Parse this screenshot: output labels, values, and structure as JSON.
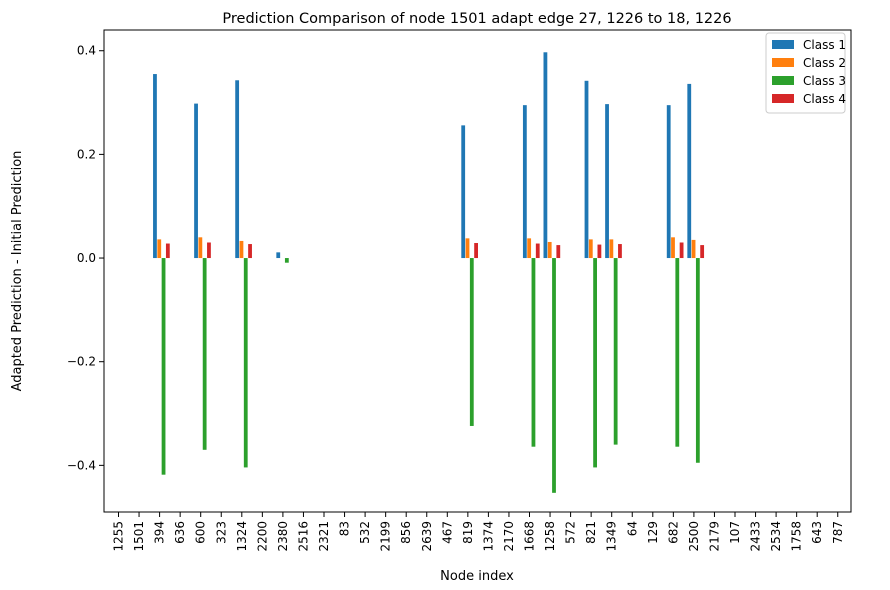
{
  "chart_data": {
    "type": "bar",
    "title": "Prediction Comparison of node 1501 adapt edge   27, 1226 to 18,  1226",
    "xlabel": "Node index",
    "ylabel": "Adapted Prediction - Initial Prediction",
    "ylim": [
      -0.49,
      0.44
    ],
    "yticks": [
      0.4,
      0.2,
      0.0,
      -0.2,
      -0.4
    ],
    "ytick_labels": [
      "0.4",
      "0.2",
      "0.0",
      "−0.2",
      "−0.4"
    ],
    "legend_position": "top-right",
    "categories": [
      "1255",
      "1501",
      "394",
      "636",
      "600",
      "323",
      "1324",
      "2200",
      "2380",
      "2516",
      "2321",
      "83",
      "532",
      "2199",
      "856",
      "2639",
      "467",
      "819",
      "1374",
      "2170",
      "1668",
      "1258",
      "572",
      "821",
      "1349",
      "64",
      "129",
      "682",
      "2500",
      "2179",
      "107",
      "2433",
      "2534",
      "1758",
      "643",
      "787"
    ],
    "series": [
      {
        "name": "Class 1",
        "color": "#1f77b4",
        "values": [
          0,
          0.355,
          0,
          0.298,
          0,
          0.343,
          0,
          0.011,
          0,
          0,
          0,
          0,
          0,
          0,
          0,
          0,
          0.256,
          0,
          0,
          0.295,
          0.397,
          0,
          0.342,
          0.297,
          0,
          0,
          0.295,
          0.336,
          0,
          0,
          0,
          0,
          0,
          0,
          0,
          0
        ]
      },
      {
        "name": "Class 2",
        "color": "#ff7f0e",
        "values": [
          0,
          0.036,
          0,
          0.04,
          0,
          0.033,
          0,
          0,
          0,
          0,
          0,
          0,
          0,
          0,
          0,
          0,
          0.038,
          0,
          0,
          0.038,
          0.031,
          0,
          0.036,
          0.036,
          0,
          0,
          0.04,
          0.035,
          0,
          0,
          0,
          0,
          0,
          0,
          0,
          0
        ]
      },
      {
        "name": "Class 3",
        "color": "#2ca02c",
        "values": [
          0,
          -0.418,
          0,
          -0.37,
          0,
          -0.404,
          0,
          -0.009,
          0,
          0,
          0,
          0,
          0,
          0,
          0,
          0,
          -0.324,
          0,
          0,
          -0.364,
          -0.453,
          0,
          -0.404,
          -0.36,
          0,
          0,
          -0.364,
          -0.395,
          0,
          0,
          0,
          0,
          0,
          0,
          0,
          0
        ]
      },
      {
        "name": "Class 4",
        "color": "#d62728",
        "values": [
          0,
          0.028,
          0,
          0.03,
          0,
          0.027,
          0,
          0,
          0,
          0,
          0,
          0,
          0,
          0,
          0,
          0,
          0.029,
          0,
          0,
          0.028,
          0.025,
          0,
          0.026,
          0.027,
          0,
          0,
          0.03,
          0.025,
          0,
          0,
          0,
          0,
          0,
          0,
          0,
          0
        ]
      }
    ]
  }
}
